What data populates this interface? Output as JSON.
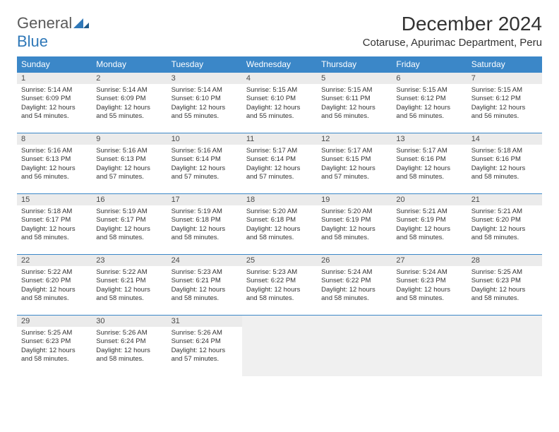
{
  "logo": {
    "word1": "General",
    "word2": "Blue"
  },
  "title": "December 2024",
  "location": "Cotaruse, Apurimac Department, Peru",
  "colors": {
    "header_bg": "#3b87c8",
    "header_text": "#ffffff",
    "daynum_bg": "#ebebeb",
    "border": "#3b87c8",
    "logo_accent": "#2f78b8",
    "logo_gray": "#5a5a5a"
  },
  "weekdays": [
    "Sunday",
    "Monday",
    "Tuesday",
    "Wednesday",
    "Thursday",
    "Friday",
    "Saturday"
  ],
  "labels": {
    "sunrise": "Sunrise:",
    "sunset": "Sunset:",
    "daylight": "Daylight:"
  },
  "days": [
    {
      "n": 1,
      "sunrise": "5:14 AM",
      "sunset": "6:09 PM",
      "daylight": "12 hours and 54 minutes."
    },
    {
      "n": 2,
      "sunrise": "5:14 AM",
      "sunset": "6:09 PM",
      "daylight": "12 hours and 55 minutes."
    },
    {
      "n": 3,
      "sunrise": "5:14 AM",
      "sunset": "6:10 PM",
      "daylight": "12 hours and 55 minutes."
    },
    {
      "n": 4,
      "sunrise": "5:15 AM",
      "sunset": "6:10 PM",
      "daylight": "12 hours and 55 minutes."
    },
    {
      "n": 5,
      "sunrise": "5:15 AM",
      "sunset": "6:11 PM",
      "daylight": "12 hours and 56 minutes."
    },
    {
      "n": 6,
      "sunrise": "5:15 AM",
      "sunset": "6:12 PM",
      "daylight": "12 hours and 56 minutes."
    },
    {
      "n": 7,
      "sunrise": "5:15 AM",
      "sunset": "6:12 PM",
      "daylight": "12 hours and 56 minutes."
    },
    {
      "n": 8,
      "sunrise": "5:16 AM",
      "sunset": "6:13 PM",
      "daylight": "12 hours and 56 minutes."
    },
    {
      "n": 9,
      "sunrise": "5:16 AM",
      "sunset": "6:13 PM",
      "daylight": "12 hours and 57 minutes."
    },
    {
      "n": 10,
      "sunrise": "5:16 AM",
      "sunset": "6:14 PM",
      "daylight": "12 hours and 57 minutes."
    },
    {
      "n": 11,
      "sunrise": "5:17 AM",
      "sunset": "6:14 PM",
      "daylight": "12 hours and 57 minutes."
    },
    {
      "n": 12,
      "sunrise": "5:17 AM",
      "sunset": "6:15 PM",
      "daylight": "12 hours and 57 minutes."
    },
    {
      "n": 13,
      "sunrise": "5:17 AM",
      "sunset": "6:16 PM",
      "daylight": "12 hours and 58 minutes."
    },
    {
      "n": 14,
      "sunrise": "5:18 AM",
      "sunset": "6:16 PM",
      "daylight": "12 hours and 58 minutes."
    },
    {
      "n": 15,
      "sunrise": "5:18 AM",
      "sunset": "6:17 PM",
      "daylight": "12 hours and 58 minutes."
    },
    {
      "n": 16,
      "sunrise": "5:19 AM",
      "sunset": "6:17 PM",
      "daylight": "12 hours and 58 minutes."
    },
    {
      "n": 17,
      "sunrise": "5:19 AM",
      "sunset": "6:18 PM",
      "daylight": "12 hours and 58 minutes."
    },
    {
      "n": 18,
      "sunrise": "5:20 AM",
      "sunset": "6:18 PM",
      "daylight": "12 hours and 58 minutes."
    },
    {
      "n": 19,
      "sunrise": "5:20 AM",
      "sunset": "6:19 PM",
      "daylight": "12 hours and 58 minutes."
    },
    {
      "n": 20,
      "sunrise": "5:21 AM",
      "sunset": "6:19 PM",
      "daylight": "12 hours and 58 minutes."
    },
    {
      "n": 21,
      "sunrise": "5:21 AM",
      "sunset": "6:20 PM",
      "daylight": "12 hours and 58 minutes."
    },
    {
      "n": 22,
      "sunrise": "5:22 AM",
      "sunset": "6:20 PM",
      "daylight": "12 hours and 58 minutes."
    },
    {
      "n": 23,
      "sunrise": "5:22 AM",
      "sunset": "6:21 PM",
      "daylight": "12 hours and 58 minutes."
    },
    {
      "n": 24,
      "sunrise": "5:23 AM",
      "sunset": "6:21 PM",
      "daylight": "12 hours and 58 minutes."
    },
    {
      "n": 25,
      "sunrise": "5:23 AM",
      "sunset": "6:22 PM",
      "daylight": "12 hours and 58 minutes."
    },
    {
      "n": 26,
      "sunrise": "5:24 AM",
      "sunset": "6:22 PM",
      "daylight": "12 hours and 58 minutes."
    },
    {
      "n": 27,
      "sunrise": "5:24 AM",
      "sunset": "6:23 PM",
      "daylight": "12 hours and 58 minutes."
    },
    {
      "n": 28,
      "sunrise": "5:25 AM",
      "sunset": "6:23 PM",
      "daylight": "12 hours and 58 minutes."
    },
    {
      "n": 29,
      "sunrise": "5:25 AM",
      "sunset": "6:23 PM",
      "daylight": "12 hours and 58 minutes."
    },
    {
      "n": 30,
      "sunrise": "5:26 AM",
      "sunset": "6:24 PM",
      "daylight": "12 hours and 58 minutes."
    },
    {
      "n": 31,
      "sunrise": "5:26 AM",
      "sunset": "6:24 PM",
      "daylight": "12 hours and 57 minutes."
    }
  ],
  "grid": {
    "first_weekday_index": 0,
    "weeks": 5,
    "cols": 7
  }
}
